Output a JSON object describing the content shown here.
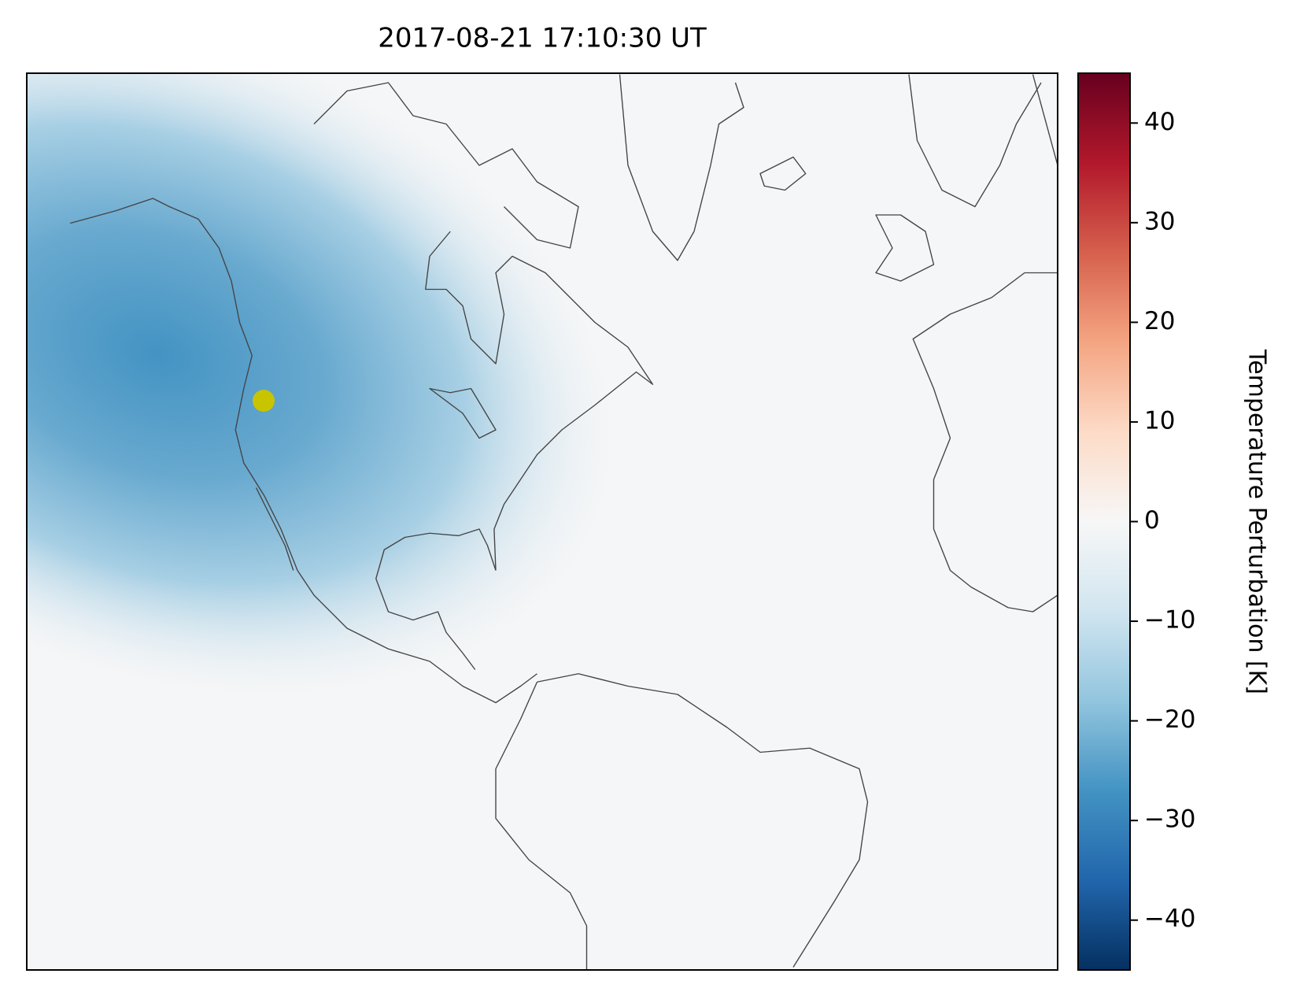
{
  "chart_data": {
    "type": "map",
    "title": "2017-08-21 17:10:30 UT",
    "colorbar_label": "Temperature Perturbation [K]",
    "colormap": [
      "#053061",
      "#2166ac",
      "#4393c3",
      "#92c5de",
      "#d1e5f0",
      "#f7f7f7",
      "#fddbc7",
      "#f4a582",
      "#d6604d",
      "#b2182b",
      "#67001f"
    ],
    "clim": [
      -45,
      45
    ],
    "cticks": [
      {
        "value": -40,
        "label": "−40"
      },
      {
        "value": -30,
        "label": "−30"
      },
      {
        "value": -20,
        "label": "−20"
      },
      {
        "value": -10,
        "label": "−10"
      },
      0,
      10,
      20,
      30,
      40
    ]
  }
}
